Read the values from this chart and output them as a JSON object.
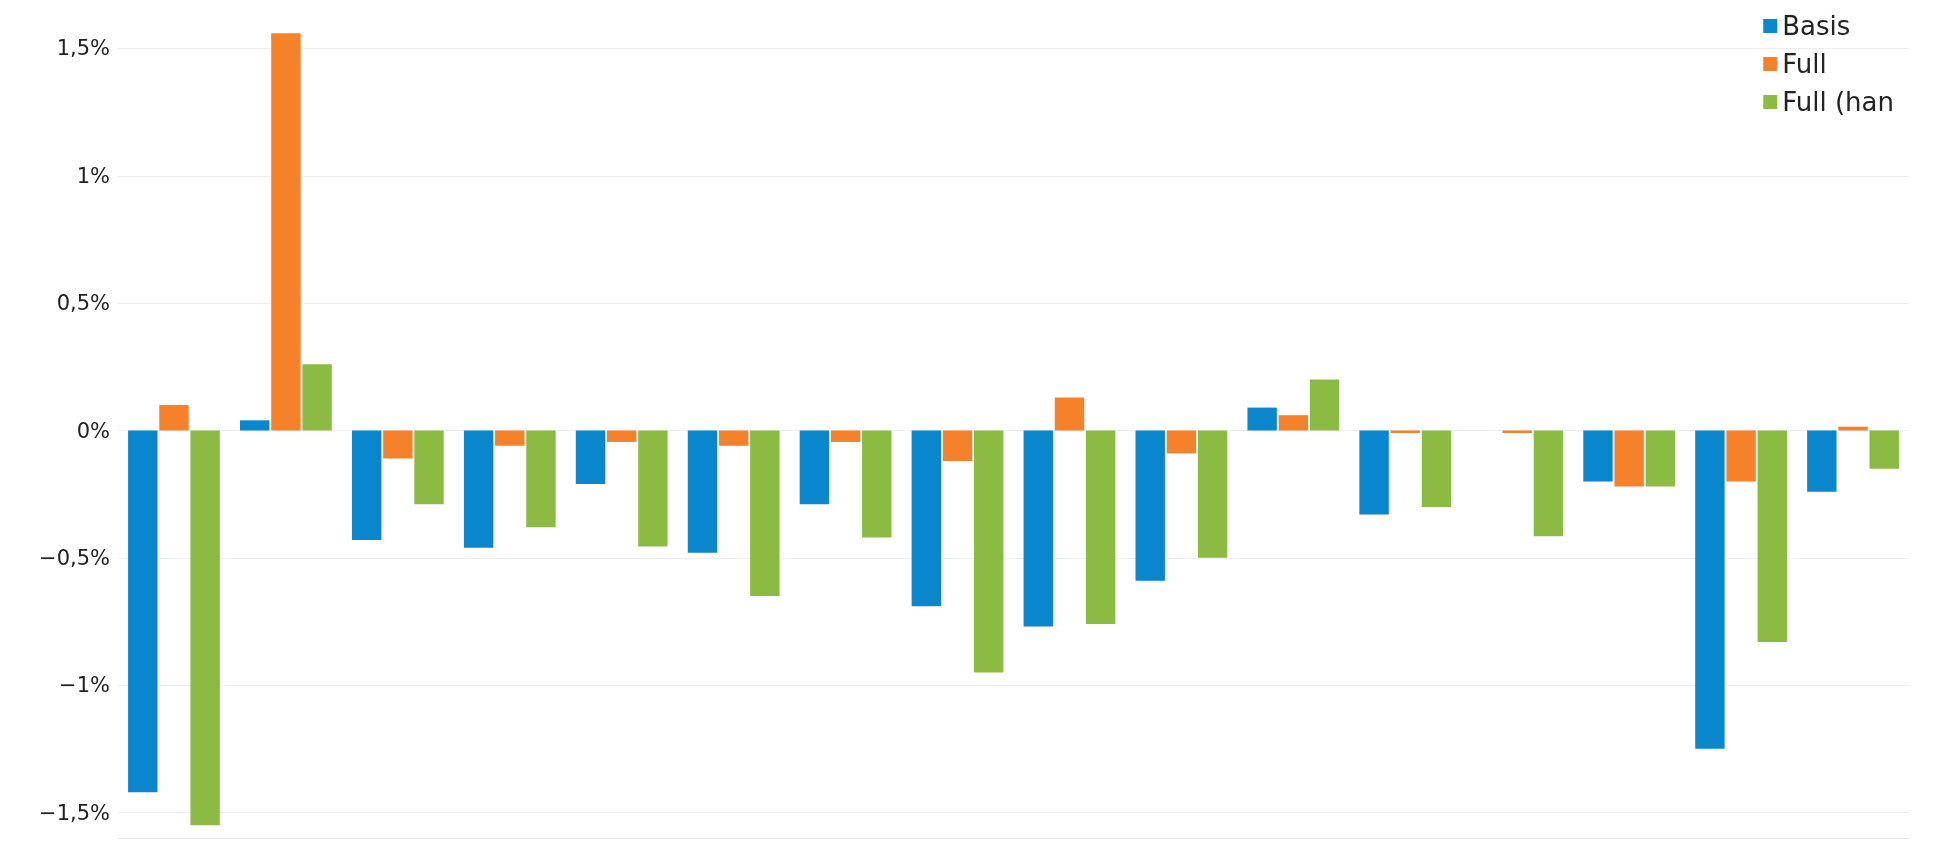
{
  "chart_data": {
    "type": "bar",
    "categories": [
      null,
      null,
      null,
      null,
      null,
      null,
      null,
      null,
      null,
      null,
      null,
      null,
      null,
      null,
      null,
      null
    ],
    "series": [
      {
        "name": "Basis",
        "color": "#0a86cc",
        "values": [
          -1.42,
          0.04,
          -0.43,
          -0.46,
          -0.21,
          -0.48,
          -0.29,
          -0.69,
          -0.77,
          -0.59,
          0.09,
          -0.33,
          null,
          -0.2,
          -1.25,
          -0.24
        ]
      },
      {
        "name": "Full",
        "color": "#f5822a",
        "values": [
          0.1,
          1.56,
          -0.11,
          -0.06,
          -0.045,
          -0.06,
          -0.045,
          -0.12,
          0.13,
          -0.09,
          0.06,
          -0.01,
          -0.01,
          -0.22,
          -0.2,
          0.015
        ]
      },
      {
        "name": "Full (han",
        "color": "#8cbb43",
        "values": [
          -1.55,
          0.26,
          -0.29,
          -0.38,
          -0.455,
          -0.65,
          -0.42,
          -0.95,
          -0.76,
          -0.5,
          0.2,
          -0.3,
          -0.415,
          -0.22,
          -0.83,
          -0.15
        ]
      }
    ],
    "ylim": [
      -1.6,
      1.6
    ],
    "yticks": [
      {
        "value": -1.5,
        "label": "−1,5%"
      },
      {
        "value": -1,
        "label": "−1%"
      },
      {
        "value": -0.5,
        "label": "−0,5%"
      },
      {
        "value": 0,
        "label": "0%"
      },
      {
        "value": 0.5,
        "label": "0,5%"
      },
      {
        "value": 1,
        "label": "1%"
      },
      {
        "value": 1.5,
        "label": "1,5%"
      }
    ],
    "grid": "y",
    "legend": "top right"
  }
}
